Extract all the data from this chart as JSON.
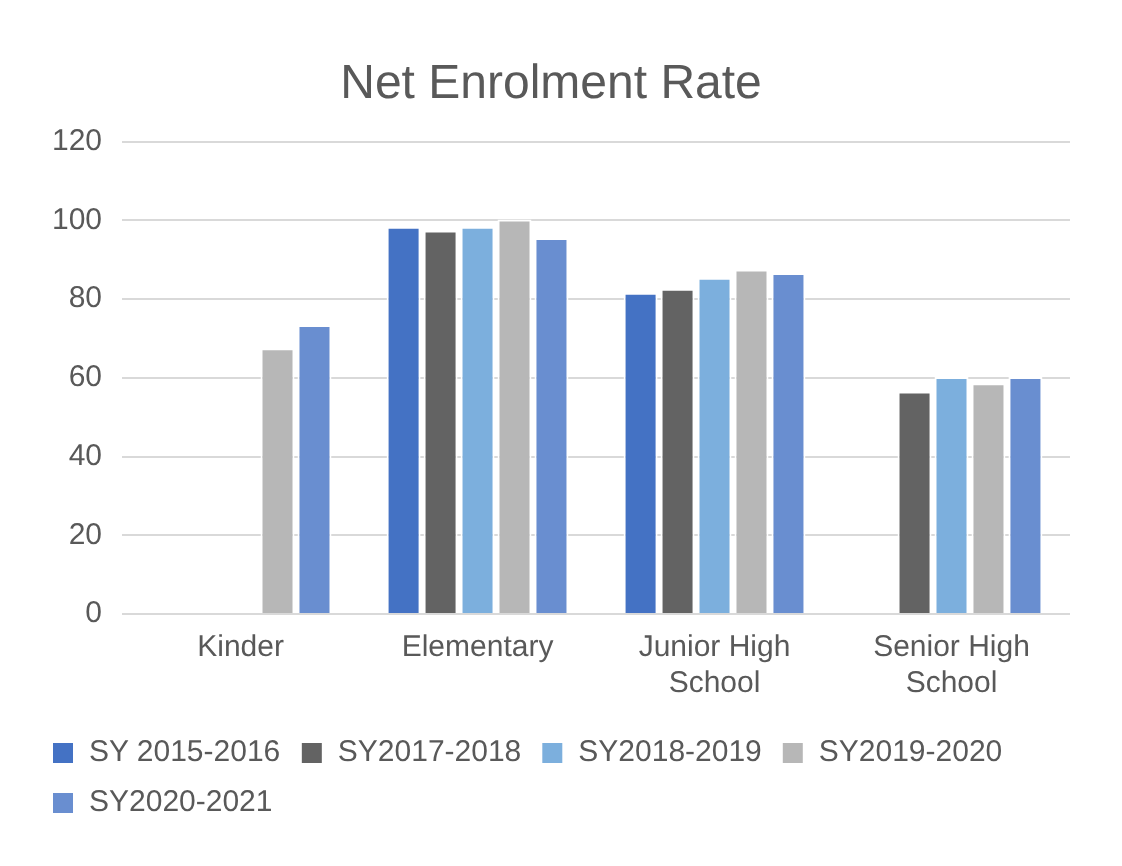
{
  "chart_data": {
    "type": "bar",
    "title": "Net Enrolment Rate",
    "categories": [
      "Kinder",
      "Elementary",
      "Junior High School",
      "Senior High School"
    ],
    "series": [
      {
        "name": "SY 2015-2016",
        "color": "#4472c4",
        "values": [
          null,
          98.4,
          81.6,
          null
        ]
      },
      {
        "name": "SY2017-2018",
        "color": "#636363",
        "values": [
          null,
          97.4,
          82.6,
          56.5
        ]
      },
      {
        "name": "SY2018-2019",
        "color": "#7cafdd",
        "values": [
          null,
          98.4,
          85.4,
          60.2
        ]
      },
      {
        "name": "SY2019-2020",
        "color": "#b7b7b7",
        "values": [
          67.5,
          100.2,
          87.5,
          58.6
        ]
      },
      {
        "name": "SY2020-2021",
        "color": "#698ed0",
        "values": [
          73.4,
          95.5,
          86.6,
          60.2
        ]
      }
    ],
    "ylim": [
      0,
      120
    ],
    "yticks": [
      0,
      20,
      40,
      60,
      80,
      100,
      120
    ],
    "grid": "y",
    "legend": "bottom"
  }
}
